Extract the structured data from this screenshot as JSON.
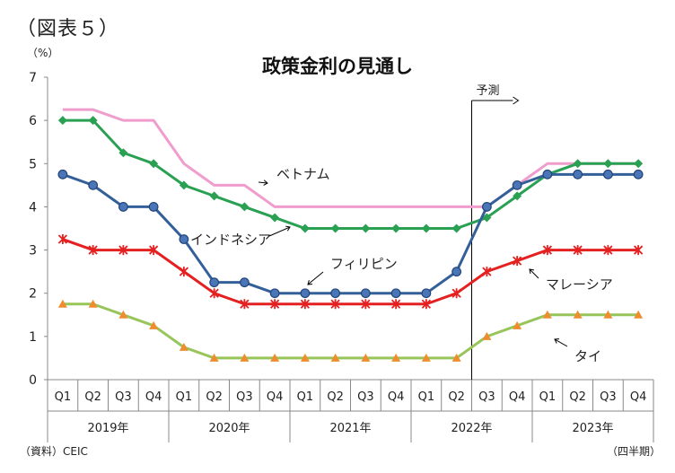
{
  "figure_label": "（図表５）",
  "unit_label": "（%）",
  "source": "（資料）CEIC",
  "frequency": "（四半期）",
  "chart_data": {
    "type": "line",
    "title": "政策金利の見通し",
    "xlabel": "",
    "ylabel": "（%）",
    "ylim": [
      0,
      7
    ],
    "yticks": [
      0,
      1,
      2,
      3,
      4,
      5,
      6,
      7
    ],
    "categories": [
      "Q1",
      "Q2",
      "Q3",
      "Q4",
      "Q1",
      "Q2",
      "Q3",
      "Q4",
      "Q1",
      "Q2",
      "Q3",
      "Q4",
      "Q1",
      "Q2",
      "Q3",
      "Q4",
      "Q1",
      "Q2",
      "Q3",
      "Q4"
    ],
    "year_groups": [
      {
        "label": "2019年",
        "span": 4
      },
      {
        "label": "2020年",
        "span": 4
      },
      {
        "label": "2021年",
        "span": 4
      },
      {
        "label": "2022年",
        "span": 4
      },
      {
        "label": "2023年",
        "span": 4
      }
    ],
    "forecast_label": "予測",
    "forecast_start_index": 13.5,
    "series": [
      {
        "name": "ベトナム",
        "color": "#f09ccc",
        "marker": "none",
        "values": [
          6.25,
          6.25,
          6.0,
          6.0,
          5.0,
          4.5,
          4.5,
          4.0,
          4.0,
          4.0,
          4.0,
          4.0,
          4.0,
          4.0,
          4.0,
          4.5,
          5.0,
          5.0,
          5.0,
          5.0
        ]
      },
      {
        "name": "インドネシア",
        "color": "#2aa053",
        "marker": "diamond",
        "values": [
          6.0,
          6.0,
          5.25,
          5.0,
          4.5,
          4.25,
          4.0,
          3.75,
          3.5,
          3.5,
          3.5,
          3.5,
          3.5,
          3.5,
          3.75,
          4.25,
          4.75,
          5.0,
          5.0,
          5.0
        ]
      },
      {
        "name": "フィリピン",
        "color": "#34609a",
        "marker": "circle",
        "values": [
          4.75,
          4.5,
          4.0,
          4.0,
          3.25,
          2.25,
          2.25,
          2.0,
          2.0,
          2.0,
          2.0,
          2.0,
          2.0,
          2.5,
          4.0,
          4.5,
          4.75,
          4.75,
          4.75,
          4.75
        ]
      },
      {
        "name": "マレーシア",
        "color": "#e42020",
        "marker": "star",
        "values": [
          3.25,
          3.0,
          3.0,
          3.0,
          2.5,
          2.0,
          1.75,
          1.75,
          1.75,
          1.75,
          1.75,
          1.75,
          1.75,
          2.0,
          2.5,
          2.75,
          3.0,
          3.0,
          3.0,
          3.0
        ]
      },
      {
        "name": "タイ",
        "color": "#98c55a",
        "marker": "triangle",
        "values": [
          1.75,
          1.75,
          1.5,
          1.25,
          0.75,
          0.5,
          0.5,
          0.5,
          0.5,
          0.5,
          0.5,
          0.5,
          0.5,
          0.5,
          1.0,
          1.25,
          1.5,
          1.5,
          1.5,
          1.5
        ]
      }
    ]
  }
}
